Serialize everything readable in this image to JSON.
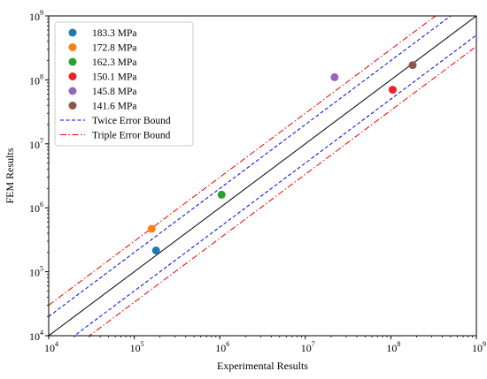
{
  "chart_data": {
    "type": "scatter",
    "title": "",
    "xlabel": "Experimental Results",
    "ylabel": "FEM Results",
    "x_scale": "log",
    "y_scale": "log",
    "xlim": [
      10000,
      1000000000
    ],
    "ylim": [
      10000,
      1000000000
    ],
    "x_ticks": [
      {
        "value": 10000,
        "base": "10",
        "exp": "4"
      },
      {
        "value": 100000,
        "base": "10",
        "exp": "5"
      },
      {
        "value": 1000000,
        "base": "10",
        "exp": "6"
      },
      {
        "value": 10000000,
        "base": "10",
        "exp": "7"
      },
      {
        "value": 100000000,
        "base": "10",
        "exp": "8"
      },
      {
        "value": 1000000000,
        "base": "10",
        "exp": "9"
      }
    ],
    "y_ticks": [
      {
        "value": 10000,
        "base": "10",
        "exp": "4"
      },
      {
        "value": 100000,
        "base": "10",
        "exp": "5"
      },
      {
        "value": 1000000,
        "base": "10",
        "exp": "6"
      },
      {
        "value": 10000000,
        "base": "10",
        "exp": "7"
      },
      {
        "value": 100000000,
        "base": "10",
        "exp": "8"
      },
      {
        "value": 1000000000,
        "base": "10",
        "exp": "9"
      }
    ],
    "grid": false,
    "legend_position": "top-left",
    "series": [
      {
        "name": "183.3 MPa",
        "color": "#1f77b4",
        "x": 180000,
        "y": 215000
      },
      {
        "name": "172.8 MPa",
        "color": "#ff7f0e",
        "x": 160000,
        "y": 470000
      },
      {
        "name": "162.3 MPa",
        "color": "#2ca02c",
        "x": 1050000,
        "y": 1600000
      },
      {
        "name": "150.1 MPa",
        "color": "#ee2222",
        "x": 105000000,
        "y": 70000000
      },
      {
        "name": "145.8 MPa",
        "color": "#9467bd",
        "x": 22000000,
        "y": 110000000
      },
      {
        "name": "141.6 MPa",
        "color": "#8c564b",
        "x": 180000000,
        "y": 170000000
      }
    ],
    "reference_lines": [
      {
        "name": "",
        "factor": 1,
        "color": "#000000",
        "style": "solid"
      },
      {
        "name": "Twice Error Bound",
        "factor": 2,
        "color": "#0000ee",
        "style": "dashed"
      },
      {
        "name": "Triple Error Bound",
        "factor": 3,
        "color": "#ee0000",
        "style": "dashdot"
      }
    ]
  }
}
